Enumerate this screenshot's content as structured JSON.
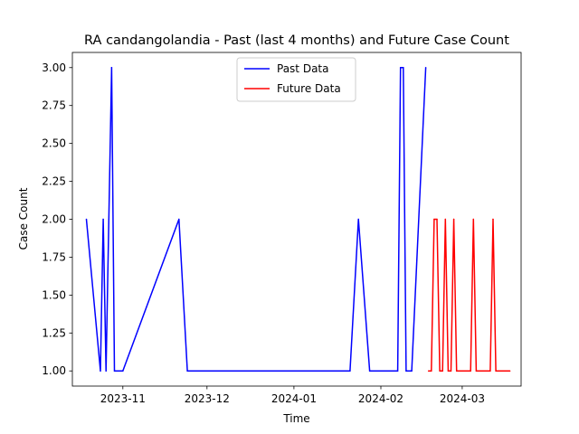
{
  "chart_data": {
    "type": "line",
    "title": "RA candangolandia - Past (last 4 months) and Future Case Count",
    "xlabel": "Time",
    "ylabel": "Case Count",
    "xlim": [
      "2023-10-14",
      "2024-03-22"
    ],
    "ylim": [
      0.9,
      3.1
    ],
    "x_ticks": [
      {
        "date": "2023-11-01",
        "label": "2023-11"
      },
      {
        "date": "2023-12-01",
        "label": "2023-12"
      },
      {
        "date": "2024-01-01",
        "label": "2024-01"
      },
      {
        "date": "2024-02-01",
        "label": "2024-02"
      },
      {
        "date": "2024-03-01",
        "label": "2024-03"
      }
    ],
    "y_ticks": [
      {
        "value": 1.0,
        "label": "1.00"
      },
      {
        "value": 1.25,
        "label": "1.25"
      },
      {
        "value": 1.5,
        "label": "1.50"
      },
      {
        "value": 1.75,
        "label": "1.75"
      },
      {
        "value": 2.0,
        "label": "2.00"
      },
      {
        "value": 2.25,
        "label": "2.25"
      },
      {
        "value": 2.5,
        "label": "2.50"
      },
      {
        "value": 2.75,
        "label": "2.75"
      },
      {
        "value": 3.0,
        "label": "3.00"
      }
    ],
    "grid": false,
    "legend": "top-center",
    "series": [
      {
        "name": "Past Data",
        "color": "#0000ff",
        "points": [
          {
            "x": "2023-10-19",
            "y": 2
          },
          {
            "x": "2023-10-24",
            "y": 1
          },
          {
            "x": "2023-10-25",
            "y": 2
          },
          {
            "x": "2023-10-26",
            "y": 1
          },
          {
            "x": "2023-10-27",
            "y": 2
          },
          {
            "x": "2023-10-28",
            "y": 3
          },
          {
            "x": "2023-10-29",
            "y": 1
          },
          {
            "x": "2023-11-01",
            "y": 1
          },
          {
            "x": "2023-11-21",
            "y": 2
          },
          {
            "x": "2023-11-24",
            "y": 1
          },
          {
            "x": "2024-01-21",
            "y": 1
          },
          {
            "x": "2024-01-24",
            "y": 2
          },
          {
            "x": "2024-01-28",
            "y": 1
          },
          {
            "x": "2024-02-07",
            "y": 1
          },
          {
            "x": "2024-02-08",
            "y": 3
          },
          {
            "x": "2024-02-09",
            "y": 3
          },
          {
            "x": "2024-02-10",
            "y": 1
          },
          {
            "x": "2024-02-12",
            "y": 1
          },
          {
            "x": "2024-02-17",
            "y": 3
          }
        ]
      },
      {
        "name": "Future Data",
        "color": "#ff0000",
        "points": [
          {
            "x": "2024-02-18",
            "y": 1
          },
          {
            "x": "2024-02-19",
            "y": 1
          },
          {
            "x": "2024-02-20",
            "y": 2
          },
          {
            "x": "2024-02-21",
            "y": 2
          },
          {
            "x": "2024-02-22",
            "y": 1
          },
          {
            "x": "2024-02-23",
            "y": 1
          },
          {
            "x": "2024-02-24",
            "y": 2
          },
          {
            "x": "2024-02-25",
            "y": 1
          },
          {
            "x": "2024-02-26",
            "y": 1
          },
          {
            "x": "2024-02-27",
            "y": 2
          },
          {
            "x": "2024-02-28",
            "y": 1
          },
          {
            "x": "2024-03-04",
            "y": 1
          },
          {
            "x": "2024-03-05",
            "y": 2
          },
          {
            "x": "2024-03-06",
            "y": 1
          },
          {
            "x": "2024-03-11",
            "y": 1
          },
          {
            "x": "2024-03-12",
            "y": 2
          },
          {
            "x": "2024-03-13",
            "y": 1
          },
          {
            "x": "2024-03-18",
            "y": 1
          }
        ]
      }
    ]
  }
}
